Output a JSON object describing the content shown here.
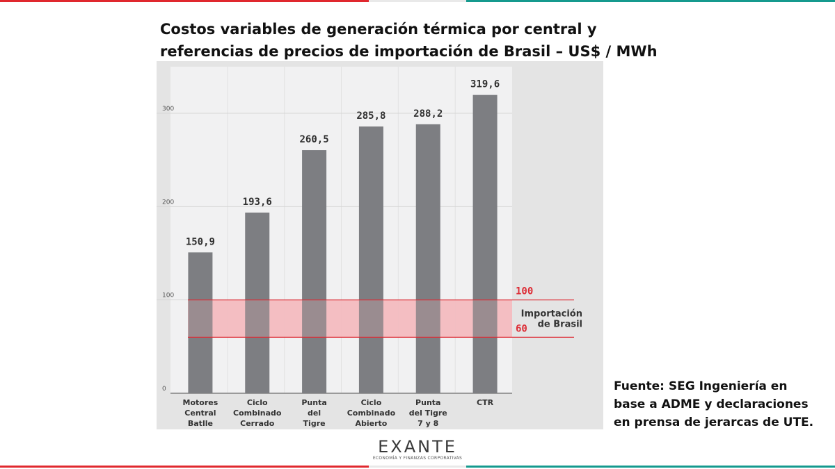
{
  "colors": {
    "stripe_red": "#e0282e",
    "stripe_gray": "#e9e9e9",
    "stripe_teal": "#159a8e",
    "bar": "#7d7e82",
    "band_fill": "#f4b9bd",
    "band_line": "#dd2c35",
    "band_label": "#dd2c35",
    "panel_bg": "#e4e4e4",
    "plot_bg": "#f1f1f2"
  },
  "title_lines": [
    "Costos variables de generación térmica por central y",
    "referencias de precios de importación de Brasil – US$ / MWh"
  ],
  "source_lines": [
    "Fuente: SEG Ingeniería en",
    "base a ADME y declaraciones",
    "en prensa de jerarcas de UTE."
  ],
  "logo": {
    "word": "EXANTE",
    "subtitle": "ECONOMÍA Y FINANZAS CORPORATIVAS"
  },
  "chart_data": {
    "type": "bar",
    "title": "Costos variables de generación térmica por central y referencias de precios de importación de Brasil – US$ / MWh",
    "xlabel": "",
    "ylabel": "",
    "ylim": [
      0,
      330
    ],
    "yticks": [
      "0",
      "100",
      "200",
      "300"
    ],
    "grid": true,
    "categories": [
      [
        "Motores",
        "Central",
        "Batlle"
      ],
      [
        "Ciclo",
        "Combinado",
        "Cerrado"
      ],
      [
        "Punta",
        "del",
        "Tigre"
      ],
      [
        "Ciclo",
        "Combinado",
        "Abierto"
      ],
      [
        "Punta",
        "del Tigre",
        "7 y 8"
      ],
      [
        "CTR"
      ]
    ],
    "values": [
      150.9,
      193.6,
      260.5,
      285.8,
      288.2,
      319.6
    ],
    "value_labels": [
      "150,9",
      "193,6",
      "260,5",
      "285,8",
      "288,2",
      "319,6"
    ],
    "band": {
      "low": 60,
      "high": 100,
      "low_label": "60",
      "high_label": "100",
      "label_lines": [
        "Importación",
        "de Brasil"
      ]
    }
  }
}
